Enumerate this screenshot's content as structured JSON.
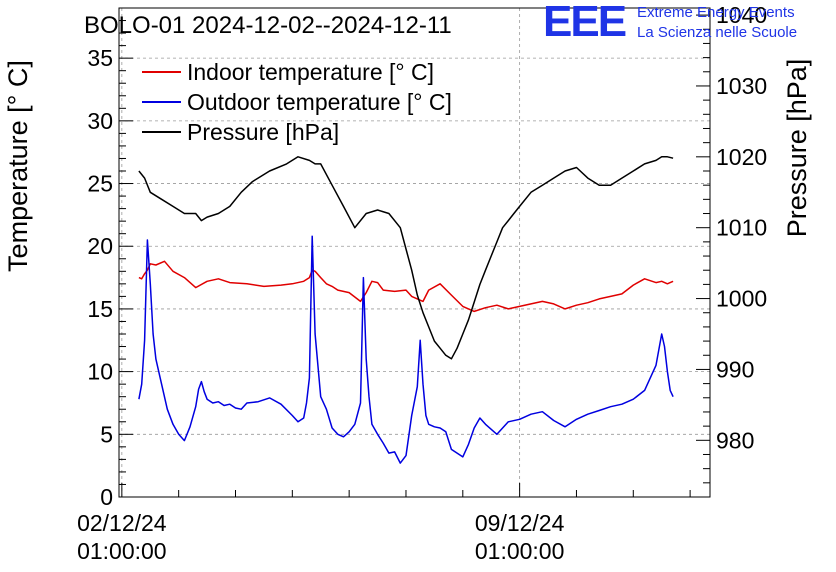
{
  "header": {
    "title": "BOLO-01 2024-12-02--2024-12-11",
    "logo_text": "EEE",
    "logo_line1": "Extreme Energy Events",
    "logo_line2": "La Scienza nelle Scuole"
  },
  "colors": {
    "indoor": "#e00000",
    "outdoor": "#0000e0",
    "pressure": "#000000",
    "logo": "#1f34e6"
  },
  "chart_data": {
    "type": "line",
    "title": "BOLO-01 2024-12-02--2024-12-11",
    "xlabel": "",
    "x_ticks": [
      {
        "x": 0,
        "line1": "02/12/24",
        "line2": "01:00:00"
      },
      {
        "x": 7,
        "line1": "09/12/24",
        "line2": "01:00:00"
      }
    ],
    "x_unit": "days since 02/12/24 01:00:00",
    "xlim": [
      -0.05,
      10.35
    ],
    "ylabel": "Temperature [° C]",
    "ylim": [
      0,
      39
    ],
    "y_ticks": [
      0,
      5,
      10,
      15,
      20,
      25,
      30,
      35
    ],
    "y2label": "Pressure [hPa]",
    "y2lim": [
      972,
      1041
    ],
    "y2_ticks": [
      980,
      990,
      1000,
      1010,
      1020,
      1030,
      1040
    ],
    "grid": true,
    "legend_position": "top-left",
    "series": [
      {
        "name": "Indoor temperature [° C]",
        "axis": "left",
        "color": "#e00000",
        "x": [
          0.3,
          0.35,
          0.4,
          0.45,
          0.5,
          0.6,
          0.75,
          0.9,
          1.1,
          1.3,
          1.5,
          1.7,
          1.9,
          2.2,
          2.5,
          2.8,
          3.0,
          3.2,
          3.3,
          3.35,
          3.4,
          3.5,
          3.6,
          3.7,
          3.8,
          4.0,
          4.2,
          4.3,
          4.4,
          4.5,
          4.6,
          4.8,
          5.0,
          5.1,
          5.3,
          5.4,
          5.6,
          5.8,
          6.0,
          6.2,
          6.4,
          6.6,
          6.8,
          7.0,
          7.2,
          7.4,
          7.6,
          7.8,
          8.0,
          8.2,
          8.4,
          8.6,
          8.8,
          9.0,
          9.2,
          9.4,
          9.5,
          9.6,
          9.65,
          9.7
        ],
        "y": [
          17.5,
          17.4,
          17.8,
          18.1,
          18.6,
          18.5,
          18.8,
          18.0,
          17.5,
          16.7,
          17.2,
          17.4,
          17.1,
          17.0,
          16.8,
          16.9,
          17.0,
          17.2,
          17.5,
          18.1,
          18.0,
          17.5,
          17.0,
          16.8,
          16.5,
          16.3,
          15.6,
          16.3,
          17.2,
          17.1,
          16.5,
          16.4,
          16.5,
          16.0,
          15.6,
          16.5,
          17.0,
          16.1,
          15.2,
          14.8,
          15.1,
          15.3,
          15.0,
          15.2,
          15.4,
          15.6,
          15.4,
          15.0,
          15.3,
          15.5,
          15.8,
          16.0,
          16.2,
          16.9,
          17.4,
          17.1,
          17.2,
          17.0,
          17.1,
          17.2
        ]
      },
      {
        "name": "Outdoor temperature [° C]",
        "axis": "left",
        "color": "#0000e0",
        "x": [
          0.3,
          0.35,
          0.4,
          0.45,
          0.5,
          0.55,
          0.6,
          0.7,
          0.8,
          0.9,
          1.0,
          1.1,
          1.2,
          1.3,
          1.35,
          1.4,
          1.45,
          1.5,
          1.6,
          1.7,
          1.8,
          1.9,
          2.0,
          2.1,
          2.2,
          2.4,
          2.6,
          2.8,
          3.0,
          3.1,
          3.2,
          3.25,
          3.3,
          3.35,
          3.4,
          3.5,
          3.6,
          3.7,
          3.8,
          3.9,
          4.0,
          4.1,
          4.2,
          4.25,
          4.3,
          4.35,
          4.4,
          4.5,
          4.6,
          4.7,
          4.8,
          4.9,
          5.0,
          5.1,
          5.2,
          5.25,
          5.3,
          5.35,
          5.4,
          5.5,
          5.6,
          5.7,
          5.8,
          6.0,
          6.1,
          6.2,
          6.3,
          6.4,
          6.5,
          6.6,
          6.8,
          7.0,
          7.2,
          7.4,
          7.6,
          7.8,
          8.0,
          8.2,
          8.4,
          8.6,
          8.8,
          9.0,
          9.2,
          9.4,
          9.5,
          9.55,
          9.6,
          9.65,
          9.7
        ],
        "y": [
          7.8,
          9.0,
          12.5,
          20.5,
          17.0,
          13.0,
          11.0,
          9.0,
          7.0,
          5.8,
          5.0,
          4.5,
          5.6,
          7.2,
          8.6,
          9.2,
          8.4,
          7.8,
          7.5,
          7.6,
          7.3,
          7.4,
          7.1,
          7.0,
          7.5,
          7.6,
          7.9,
          7.4,
          6.5,
          6.0,
          6.3,
          7.5,
          9.5,
          20.8,
          13.0,
          8.0,
          7.0,
          5.5,
          5.0,
          4.8,
          5.2,
          5.8,
          7.5,
          17.5,
          11.0,
          8.0,
          5.8,
          5.0,
          4.3,
          3.5,
          3.6,
          2.7,
          3.3,
          6.5,
          8.8,
          12.5,
          9.0,
          6.5,
          5.8,
          5.6,
          5.5,
          5.2,
          3.8,
          3.2,
          4.2,
          5.5,
          6.3,
          5.8,
          5.4,
          5.0,
          6.0,
          6.2,
          6.6,
          6.8,
          6.1,
          5.6,
          6.2,
          6.6,
          6.9,
          7.2,
          7.4,
          7.8,
          8.5,
          10.5,
          13.0,
          12.0,
          10.0,
          8.5,
          8.0
        ]
      },
      {
        "name": "Pressure [hPa]",
        "axis": "right",
        "color": "#000000",
        "x": [
          0.3,
          0.4,
          0.5,
          0.7,
          0.9,
          1.1,
          1.3,
          1.4,
          1.5,
          1.7,
          1.9,
          2.1,
          2.3,
          2.6,
          2.9,
          3.1,
          3.3,
          3.4,
          3.5,
          3.7,
          3.9,
          4.1,
          4.3,
          4.5,
          4.7,
          4.9,
          5.0,
          5.1,
          5.2,
          5.3,
          5.4,
          5.5,
          5.6,
          5.7,
          5.8,
          5.9,
          6.0,
          6.1,
          6.2,
          6.3,
          6.4,
          6.5,
          6.6,
          6.7,
          6.8,
          6.9,
          7.0,
          7.2,
          7.4,
          7.6,
          7.8,
          8.0,
          8.2,
          8.4,
          8.6,
          8.8,
          9.0,
          9.2,
          9.4,
          9.5,
          9.6,
          9.7
        ],
        "y": [
          1018.0,
          1017.0,
          1015.0,
          1014.0,
          1013.0,
          1012.0,
          1012.0,
          1011.0,
          1011.5,
          1012.0,
          1013.0,
          1015.0,
          1016.5,
          1018.0,
          1019.0,
          1020.0,
          1019.5,
          1019.0,
          1019.0,
          1016.0,
          1013.0,
          1010.0,
          1012.0,
          1012.5,
          1012.0,
          1010.0,
          1007.0,
          1004.0,
          1000.5,
          998.0,
          996.0,
          994.0,
          993.0,
          992.0,
          991.5,
          993.0,
          995.0,
          997.0,
          999.5,
          1002.0,
          1004.0,
          1006.0,
          1008.0,
          1010.0,
          1011.0,
          1012.0,
          1013.0,
          1015.0,
          1016.0,
          1017.0,
          1018.0,
          1018.5,
          1017.0,
          1016.0,
          1016.0,
          1017.0,
          1018.0,
          1019.0,
          1019.5,
          1020.0,
          1020.0,
          1019.8
        ]
      }
    ]
  }
}
